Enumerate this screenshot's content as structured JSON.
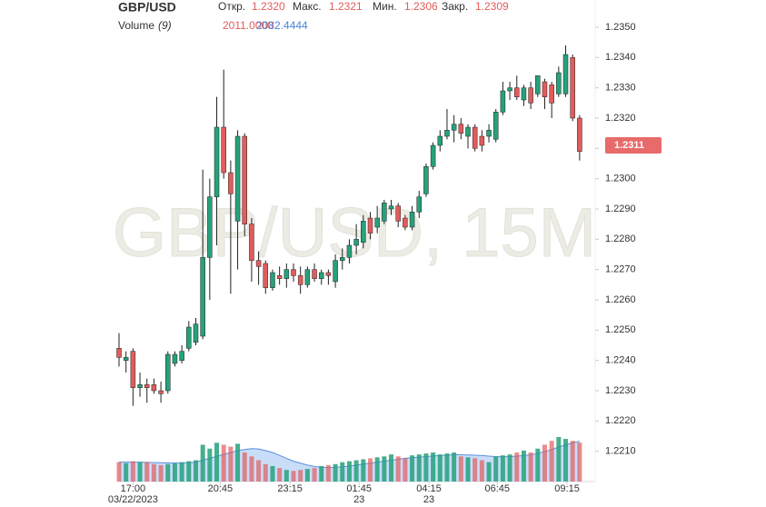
{
  "chart_data": {
    "type": "candlestick",
    "title": "GBP/USD",
    "watermark": "GBP/USD, 15M",
    "ohlc_labels": [
      {
        "label": "Откр.",
        "value": "1.2320"
      },
      {
        "label": "Макс.",
        "value": "1.2321"
      },
      {
        "label": "Мин.",
        "value": "1.2306"
      },
      {
        "label": "Закр.",
        "value": "1.2309"
      }
    ],
    "volume_title": "Volume",
    "volume_period": "(9)",
    "volume_value": "2011.0000",
    "volume_ma_value": "2082.4444",
    "last_price": 1.2311,
    "up_color": "#26a17b",
    "down_color": "#e15c5c",
    "open": [
      1.2244,
      1.224,
      1.2243,
      1.2231,
      1.2232,
      1.2232,
      1.223,
      1.223,
      1.2239,
      1.224,
      1.2244,
      1.2246,
      1.2248,
      1.2274,
      1.2294,
      1.2317,
      1.2302,
      1.2286,
      1.2314,
      1.2285,
      1.2273,
      1.2272,
      1.2264,
      1.2268,
      1.2267,
      1.227,
      1.2268,
      1.2265,
      1.227,
      1.2267,
      1.2269,
      1.2266,
      1.2273,
      1.2274,
      1.2278,
      1.2279,
      1.2287,
      1.2284,
      1.2286,
      1.229,
      1.2291,
      1.2287,
      1.2284,
      1.2289,
      1.2295,
      1.2304,
      1.2311,
      1.2314,
      1.2316,
      1.2318,
      1.2314,
      1.2317,
      1.2314,
      1.2314,
      1.2313,
      1.2322,
      1.2329,
      1.233,
      1.2326,
      1.233,
      1.2328,
      1.2332,
      1.2331,
      1.2328,
      1.2328,
      1.234,
      1.232
    ],
    "high": [
      1.2249,
      1.2243,
      1.2244,
      1.2236,
      1.2234,
      1.2234,
      1.2233,
      1.2243,
      1.2243,
      1.2245,
      1.2253,
      1.2254,
      1.2303,
      1.23,
      1.2327,
      1.2336,
      1.2306,
      1.2316,
      1.2315,
      1.2287,
      1.2276,
      1.2273,
      1.227,
      1.2271,
      1.2272,
      1.2272,
      1.2271,
      1.2271,
      1.2272,
      1.227,
      1.227,
      1.2275,
      1.2277,
      1.228,
      1.2285,
      1.2288,
      1.2289,
      1.2291,
      1.2293,
      1.2293,
      1.2292,
      1.2288,
      1.2291,
      1.2296,
      1.2305,
      1.2312,
      1.2316,
      1.2323,
      1.2321,
      1.232,
      1.2318,
      1.2318,
      1.2316,
      1.2318,
      1.2323,
      1.2332,
      1.2332,
      1.2334,
      1.2331,
      1.2332,
      1.2334,
      1.2333,
      1.2332,
      1.2337,
      1.2344,
      1.2341,
      1.2321
    ],
    "low": [
      1.2238,
      1.2236,
      1.2225,
      1.2228,
      1.2226,
      1.2229,
      1.2226,
      1.2229,
      1.2238,
      1.2239,
      1.2243,
      1.2245,
      1.2247,
      1.226,
      1.2278,
      1.23,
      1.2262,
      1.227,
      1.2281,
      1.2266,
      1.2265,
      1.2262,
      1.2263,
      1.2265,
      1.2264,
      1.2266,
      1.2262,
      1.2264,
      1.2266,
      1.2265,
      1.2265,
      1.2264,
      1.227,
      1.2272,
      1.2275,
      1.2277,
      1.228,
      1.2282,
      1.2285,
      1.2288,
      1.2284,
      1.2283,
      1.2283,
      1.2287,
      1.2294,
      1.2303,
      1.2309,
      1.2313,
      1.2312,
      1.2313,
      1.231,
      1.2309,
      1.2309,
      1.2312,
      1.2312,
      1.2321,
      1.2326,
      1.2326,
      1.2324,
      1.2323,
      1.2327,
      1.2323,
      1.232,
      1.2327,
      1.2327,
      1.2319,
      1.2306
    ],
    "close": [
      1.2241,
      1.2241,
      1.2231,
      1.2232,
      1.2231,
      1.223,
      1.2229,
      1.2242,
      1.2242,
      1.2243,
      1.2251,
      1.2252,
      1.2274,
      1.2294,
      1.2317,
      1.2302,
      1.2295,
      1.2314,
      1.2285,
      1.2273,
      1.2271,
      1.2264,
      1.2269,
      1.2267,
      1.227,
      1.2268,
      1.2265,
      1.227,
      1.2267,
      1.2269,
      1.2268,
      1.2273,
      1.2274,
      1.2278,
      1.228,
      1.2286,
      1.2282,
      1.2287,
      1.2292,
      1.2291,
      1.2286,
      1.2284,
      1.2289,
      1.2294,
      1.2304,
      1.2311,
      1.2314,
      1.2316,
      1.2318,
      1.2315,
      1.2317,
      1.231,
      1.2311,
      1.2316,
      1.2322,
      1.2329,
      1.233,
      1.2327,
      1.233,
      1.2325,
      1.2334,
      1.2327,
      1.2325,
      1.2335,
      1.2341,
      1.232,
      1.2309
    ],
    "volume": [
      1000,
      950,
      1050,
      1000,
      1000,
      900,
      850,
      900,
      950,
      1000,
      1050,
      1100,
      1900,
      1700,
      2000,
      1900,
      1800,
      1950,
      1500,
      1300,
      1100,
      900,
      800,
      700,
      600,
      550,
      600,
      650,
      700,
      800,
      850,
      900,
      1000,
      1050,
      1100,
      1150,
      1200,
      1250,
      1300,
      1400,
      1300,
      1200,
      1350,
      1400,
      1450,
      1500,
      1400,
      1450,
      1500,
      1300,
      1250,
      1200,
      1100,
      1000,
      1300,
      1350,
      1400,
      1500,
      1600,
      1500,
      1700,
      1900,
      2100,
      2300,
      2200,
      2100,
      2011
    ],
    "volume_ma": [
      1000,
      1000,
      1000,
      1000,
      990,
      980,
      970,
      960,
      955,
      960,
      980,
      1000,
      1100,
      1200,
      1300,
      1400,
      1500,
      1600,
      1650,
      1700,
      1680,
      1600,
      1500,
      1350,
      1200,
      1050,
      950,
      850,
      780,
      740,
      720,
      730,
      760,
      800,
      850,
      900,
      950,
      1000,
      1050,
      1100,
      1150,
      1200,
      1230,
      1260,
      1290,
      1320,
      1340,
      1360,
      1380,
      1380,
      1370,
      1360,
      1340,
      1310,
      1290,
      1280,
      1290,
      1310,
      1340,
      1380,
      1450,
      1550,
      1650,
      1780,
      1900,
      2000,
      2082.4444
    ],
    "ylim": [
      1.22,
      1.2359
    ],
    "volume_ylim": [
      0,
      6000
    ],
    "yticks": [
      {
        "value": 1.235,
        "label": "1.2350"
      },
      {
        "value": 1.234,
        "label": "1.2340"
      },
      {
        "value": 1.233,
        "label": "1.2330"
      },
      {
        "value": 1.232,
        "label": "1.2320"
      },
      {
        "value": 1.231,
        "label": "1.2310"
      },
      {
        "value": 1.23,
        "label": "1.2300"
      },
      {
        "value": 1.229,
        "label": "1.2290"
      },
      {
        "value": 1.228,
        "label": "1.2280"
      },
      {
        "value": 1.227,
        "label": "1.2270"
      },
      {
        "value": 1.226,
        "label": "1.2260"
      },
      {
        "value": 1.225,
        "label": "1.2250"
      },
      {
        "value": 1.224,
        "label": "1.2240"
      },
      {
        "value": 1.223,
        "label": "1.2230"
      },
      {
        "value": 1.222,
        "label": "1.2220"
      },
      {
        "value": 1.221,
        "label": "1.2210"
      }
    ],
    "xticks": [
      {
        "value": 2,
        "label": "17:00",
        "sublabel": "03/22/2023"
      },
      {
        "value": 14.5,
        "label": "20:45"
      },
      {
        "value": 24.5,
        "label": "23:15"
      },
      {
        "value": 34.4,
        "label": "01:45",
        "sublabel": "23"
      },
      {
        "value": 44.4,
        "label": "04:15",
        "sublabel": "23"
      },
      {
        "value": 54.2,
        "label": "06:45"
      },
      {
        "value": 64.2,
        "label": "09:15"
      }
    ]
  }
}
